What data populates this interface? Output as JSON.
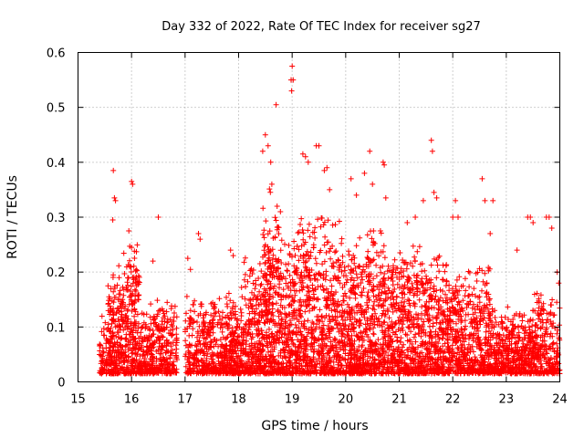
{
  "chart_data": {
    "type": "scatter",
    "title": "Day 332 of 2022, Rate Of TEC Index for receiver sg27",
    "xlabel": "GPS time / hours",
    "ylabel": "ROTI / TECUs",
    "xlim": [
      15,
      24
    ],
    "ylim": [
      0,
      0.6
    ],
    "xticks": [
      "15",
      "16",
      "17",
      "18",
      "19",
      "20",
      "21",
      "22",
      "23",
      "24"
    ],
    "yticks": [
      "0",
      "0.1",
      "0.2",
      "0.3",
      "0.4",
      "0.5",
      "0.6"
    ],
    "grid": true,
    "marker": "+",
    "color": "#ff0000",
    "series": [
      {
        "name": "ROTI",
        "clusters": [
          {
            "x_range": [
              15.4,
              15.55
            ],
            "base": 0.05,
            "spread": 0.06,
            "count": 60
          },
          {
            "x_range": [
              15.55,
              15.85
            ],
            "base": 0.08,
            "spread": 0.12,
            "count": 220
          },
          {
            "x_range": [
              15.85,
              16.15
            ],
            "base": 0.09,
            "spread": 0.16,
            "count": 240
          },
          {
            "x_range": [
              16.15,
              16.45
            ],
            "base": 0.06,
            "spread": 0.08,
            "count": 160
          },
          {
            "x_range": [
              16.45,
              16.85
            ],
            "base": 0.06,
            "spread": 0.08,
            "count": 200
          },
          {
            "x_range": [
              17.0,
              17.3
            ],
            "base": 0.05,
            "spread": 0.1,
            "count": 120
          },
          {
            "x_range": [
              17.3,
              17.75
            ],
            "base": 0.05,
            "spread": 0.09,
            "count": 240
          },
          {
            "x_range": [
              17.75,
              18.05
            ],
            "base": 0.05,
            "spread": 0.1,
            "count": 220
          },
          {
            "x_range": [
              18.05,
              18.45
            ],
            "base": 0.09,
            "spread": 0.14,
            "count": 280
          },
          {
            "x_range": [
              18.45,
              18.75
            ],
            "base": 0.13,
            "spread": 0.22,
            "count": 280
          },
          {
            "x_range": [
              18.75,
              19.1
            ],
            "base": 0.1,
            "spread": 0.18,
            "count": 260
          },
          {
            "x_range": [
              19.1,
              19.5
            ],
            "base": 0.14,
            "spread": 0.18,
            "count": 300
          },
          {
            "x_range": [
              19.5,
              19.9
            ],
            "base": 0.13,
            "spread": 0.17,
            "count": 300
          },
          {
            "x_range": [
              19.9,
              20.3
            ],
            "base": 0.11,
            "spread": 0.16,
            "count": 300
          },
          {
            "x_range": [
              20.3,
              20.7
            ],
            "base": 0.11,
            "spread": 0.18,
            "count": 300
          },
          {
            "x_range": [
              20.7,
              21.1
            ],
            "base": 0.1,
            "spread": 0.15,
            "count": 280
          },
          {
            "x_range": [
              21.1,
              21.5
            ],
            "base": 0.1,
            "spread": 0.15,
            "count": 280
          },
          {
            "x_range": [
              21.5,
              21.9
            ],
            "base": 0.09,
            "spread": 0.14,
            "count": 260
          },
          {
            "x_range": [
              21.9,
              22.3
            ],
            "base": 0.08,
            "spread": 0.12,
            "count": 260
          },
          {
            "x_range": [
              22.3,
              22.7
            ],
            "base": 0.08,
            "spread": 0.13,
            "count": 260
          },
          {
            "x_range": [
              22.7,
              23.1
            ],
            "base": 0.06,
            "spread": 0.08,
            "count": 220
          },
          {
            "x_range": [
              23.1,
              23.5
            ],
            "base": 0.05,
            "spread": 0.08,
            "count": 240
          },
          {
            "x_range": [
              23.5,
              24.0
            ],
            "base": 0.06,
            "spread": 0.1,
            "count": 260
          }
        ],
        "peaks": [
          [
            15.66,
            0.385
          ],
          [
            15.68,
            0.335
          ],
          [
            15.7,
            0.33
          ],
          [
            15.65,
            0.295
          ],
          [
            16.0,
            0.365
          ],
          [
            16.02,
            0.36
          ],
          [
            15.95,
            0.275
          ],
          [
            16.0,
            0.245
          ],
          [
            16.5,
            0.3
          ],
          [
            16.4,
            0.22
          ],
          [
            17.05,
            0.225
          ],
          [
            17.1,
            0.205
          ],
          [
            17.25,
            0.27
          ],
          [
            17.28,
            0.26
          ],
          [
            17.85,
            0.24
          ],
          [
            17.9,
            0.23
          ],
          [
            18.45,
            0.42
          ],
          [
            18.5,
            0.45
          ],
          [
            18.55,
            0.43
          ],
          [
            18.6,
            0.4
          ],
          [
            18.62,
            0.36
          ],
          [
            18.7,
            0.505
          ],
          [
            18.72,
            0.32
          ],
          [
            18.78,
            0.31
          ],
          [
            19.0,
            0.575
          ],
          [
            18.98,
            0.55
          ],
          [
            18.99,
            0.53
          ],
          [
            19.02,
            0.55
          ],
          [
            19.2,
            0.415
          ],
          [
            19.25,
            0.41
          ],
          [
            19.3,
            0.4
          ],
          [
            19.45,
            0.43
          ],
          [
            19.5,
            0.43
          ],
          [
            19.6,
            0.385
          ],
          [
            19.65,
            0.39
          ],
          [
            19.7,
            0.35
          ],
          [
            20.1,
            0.37
          ],
          [
            20.2,
            0.34
          ],
          [
            20.35,
            0.38
          ],
          [
            20.45,
            0.42
          ],
          [
            20.5,
            0.36
          ],
          [
            20.7,
            0.4
          ],
          [
            20.72,
            0.395
          ],
          [
            20.75,
            0.335
          ],
          [
            21.15,
            0.29
          ],
          [
            21.3,
            0.3
          ],
          [
            21.45,
            0.33
          ],
          [
            21.6,
            0.44
          ],
          [
            21.62,
            0.42
          ],
          [
            21.65,
            0.345
          ],
          [
            21.7,
            0.335
          ],
          [
            22.0,
            0.3
          ],
          [
            22.05,
            0.33
          ],
          [
            22.1,
            0.3
          ],
          [
            22.55,
            0.37
          ],
          [
            22.6,
            0.33
          ],
          [
            22.75,
            0.33
          ],
          [
            22.7,
            0.27
          ],
          [
            23.2,
            0.24
          ],
          [
            23.4,
            0.3
          ],
          [
            23.45,
            0.3
          ],
          [
            23.5,
            0.29
          ],
          [
            23.75,
            0.3
          ],
          [
            23.8,
            0.3
          ],
          [
            23.85,
            0.28
          ],
          [
            23.95,
            0.2
          ],
          [
            23.98,
            0.18
          ]
        ]
      }
    ]
  }
}
